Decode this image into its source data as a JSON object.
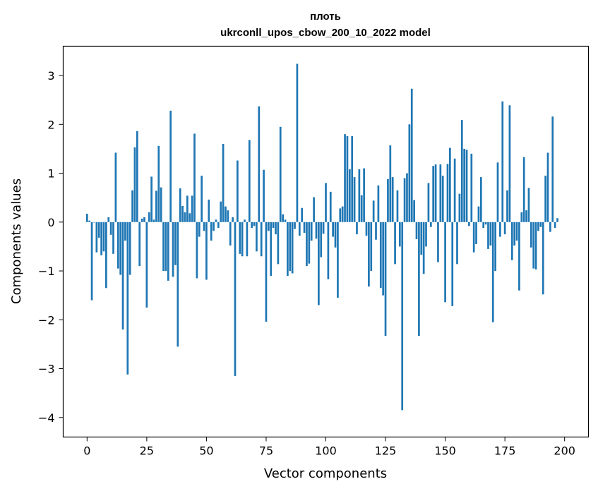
{
  "chart_data": {
    "type": "bar",
    "title_line1": "плоть",
    "title_line2": "ukrconll_upos_cbow_200_10_2022 model",
    "xlabel": "Vector components",
    "ylabel": "Components values",
    "xlim": [
      -10,
      210
    ],
    "ylim": [
      -4.4,
      3.6
    ],
    "xticks": [
      0,
      25,
      50,
      75,
      100,
      125,
      150,
      175,
      200
    ],
    "yticks": [
      -4,
      -3,
      -2,
      -1,
      0,
      1,
      2,
      3
    ],
    "bar_color": "#1f77b4",
    "grid": false,
    "values": [
      0.17,
      0.03,
      -1.6,
      0.0,
      -0.62,
      -0.32,
      -0.68,
      -0.6,
      -1.35,
      0.1,
      -0.26,
      -0.65,
      1.42,
      -0.95,
      -1.08,
      -2.2,
      -0.38,
      -3.12,
      -1.08,
      0.65,
      1.53,
      1.86,
      -0.9,
      0.07,
      0.1,
      -1.75,
      0.2,
      0.93,
      0.05,
      0.64,
      1.56,
      0.71,
      -1.0,
      -1.0,
      -1.2,
      2.28,
      -1.12,
      -0.88,
      -2.55,
      0.69,
      0.33,
      0.2,
      0.54,
      0.18,
      0.54,
      1.81,
      -1.15,
      -0.3,
      0.95,
      -0.18,
      -1.18,
      0.46,
      -0.38,
      -0.18,
      0.05,
      -0.12,
      0.42,
      1.6,
      0.32,
      0.24,
      -0.48,
      0.1,
      -3.15,
      1.26,
      -0.65,
      -0.7,
      0.05,
      -0.7,
      1.68,
      -0.12,
      -0.08,
      -0.6,
      2.37,
      -0.7,
      1.07,
      -2.04,
      -0.18,
      -1.1,
      -0.12,
      -0.25,
      -0.86,
      1.95,
      0.16,
      0.05,
      -1.1,
      -1.0,
      -1.05,
      -0.14,
      3.24,
      -0.28,
      0.29,
      -0.22,
      -0.9,
      -0.85,
      -0.38,
      0.51,
      -0.34,
      -1.7,
      -0.72,
      -0.24,
      0.8,
      -1.17,
      0.62,
      -0.3,
      -0.52,
      -1.55,
      0.28,
      0.32,
      1.8,
      1.76,
      1.08,
      1.76,
      0.92,
      -0.25,
      1.08,
      0.55,
      1.1,
      -0.28,
      -1.32,
      -1.0,
      0.44,
      -0.36,
      0.75,
      -1.35,
      -1.5,
      -2.33,
      0.88,
      1.57,
      0.92,
      -0.86,
      0.65,
      -0.5,
      -3.85,
      0.9,
      1.0,
      2.0,
      2.73,
      0.45,
      -0.35,
      -2.33,
      -0.67,
      -1.06,
      -0.5,
      0.8,
      -0.1,
      1.15,
      1.18,
      -0.82,
      1.18,
      0.95,
      -1.64,
      1.19,
      1.52,
      -1.72,
      1.3,
      -0.86,
      0.58,
      2.09,
      1.5,
      1.48,
      -0.08,
      1.4,
      -0.62,
      -0.45,
      0.32,
      0.92,
      -0.12,
      -0.05,
      -0.55,
      -0.48,
      -2.05,
      -1.0,
      1.22,
      -0.3,
      2.47,
      -0.25,
      0.65,
      2.39,
      -0.78,
      -0.48,
      -0.38,
      -1.4,
      0.2,
      1.33,
      0.24,
      0.7,
      -0.52,
      -0.95,
      -0.97,
      -0.18,
      -0.1,
      -1.48,
      0.95,
      1.42,
      -0.2,
      2.16,
      -0.12,
      0.08
    ]
  }
}
